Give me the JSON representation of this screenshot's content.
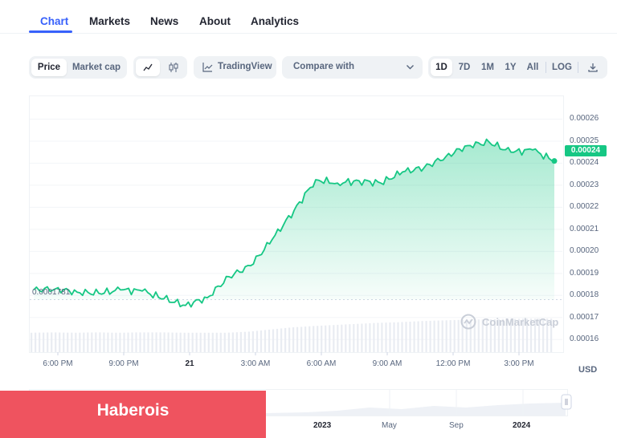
{
  "tabs": [
    {
      "label": "Chart",
      "active": true
    },
    {
      "label": "Markets",
      "active": false
    },
    {
      "label": "News",
      "active": false
    },
    {
      "label": "About",
      "active": false
    },
    {
      "label": "Analytics",
      "active": false
    }
  ],
  "toolbar": {
    "metric_options": [
      "Price",
      "Market cap"
    ],
    "selected_metric": "Price",
    "chart_style_icons": [
      "line-chart-icon",
      "candlestick-icon"
    ],
    "selected_style": "line-chart-icon",
    "tradingview_label": "TradingView",
    "compare_label": "Compare with",
    "ranges": [
      "1D",
      "7D",
      "1M",
      "1Y",
      "All"
    ],
    "selected_range": "1D",
    "log_label": "LOG",
    "download_icon": "download-icon"
  },
  "colors": {
    "accent": "#3861fb",
    "positive": "#16c784",
    "negative": "#ea3943",
    "banner": "#ef535f"
  },
  "chart_data": {
    "type": "line",
    "y_ticks": [
      "0.00026",
      "0.00025",
      "0.00024",
      "0.00023",
      "0.00022",
      "0.00021",
      "0.00020",
      "0.00019",
      "0.00018",
      "0.00017",
      "0.00016"
    ],
    "ylim": [
      0.000155,
      0.00027
    ],
    "x_ticks": [
      "6:00 PM",
      "9:00 PM",
      "21",
      "3:00 AM",
      "6:00 AM",
      "9:00 AM",
      "12:00 PM",
      "3:00 PM"
    ],
    "x_tick_bold": "21",
    "x_hours": [
      0,
      1,
      2,
      3,
      4,
      5,
      6,
      7,
      8,
      9,
      10,
      11,
      12,
      13,
      14,
      15,
      16,
      17,
      18,
      19,
      20,
      21,
      22,
      23,
      24
    ],
    "open_price": 0.0001781,
    "open_price_label": "0.0001781",
    "current_price": 0.00024,
    "current_price_label": "0.00024",
    "series": [
      {
        "values": [
          0.0001825,
          0.000183,
          0.0001815,
          0.000181,
          0.0001825,
          0.000182,
          0.0001785,
          0.0001755,
          0.000179,
          0.0001885,
          0.0001935,
          0.0002055,
          0.0002185,
          0.0002325,
          0.000231,
          0.000232,
          0.000231,
          0.000236,
          0.000238,
          0.000243,
          0.000248,
          0.0002495,
          0.000245,
          0.000246,
          0.000241
        ]
      }
    ],
    "volume_relative": [
      0.55,
      0.56,
      0.55,
      0.56,
      0.55,
      0.56,
      0.56,
      0.55,
      0.55,
      0.55,
      0.58,
      0.64,
      0.7,
      0.74,
      0.77,
      0.8,
      0.83,
      0.85,
      0.88,
      0.9,
      0.92,
      0.93,
      0.94,
      0.95,
      0.95
    ],
    "currency_label": "USD",
    "watermark": "CoinMarketCap"
  },
  "overview": {
    "labels": [
      "2023",
      "May",
      "Sep",
      "2024"
    ],
    "bold_labels": [
      "2023",
      "2024"
    ]
  },
  "banner": {
    "text": "Haberois"
  }
}
